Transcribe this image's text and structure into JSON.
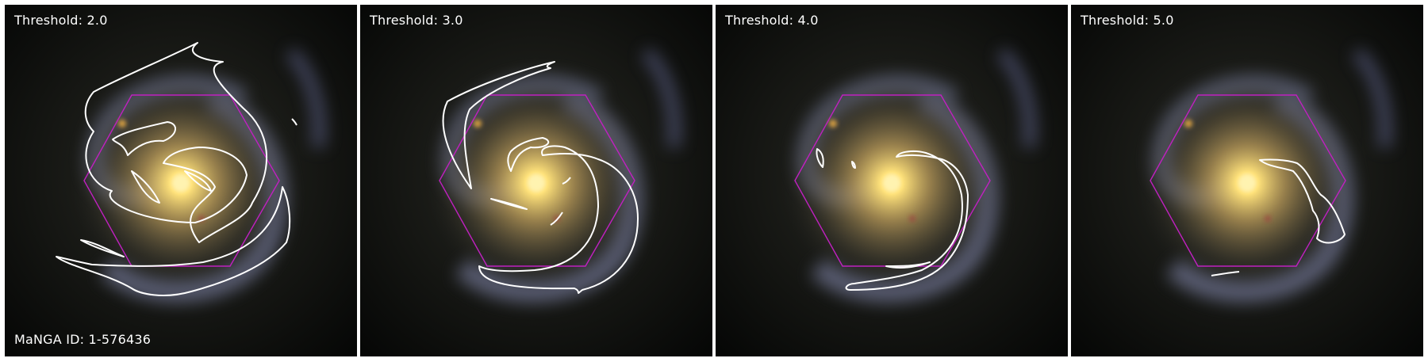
{
  "galaxy_id_label": "MaNGA ID: 1-576436",
  "panels": [
    {
      "threshold_label": "Threshold: 2.0"
    },
    {
      "threshold_label": "Threshold: 3.0"
    },
    {
      "threshold_label": "Threshold: 4.0"
    },
    {
      "threshold_label": "Threshold: 5.0"
    }
  ],
  "colors": {
    "hexagon": "#c020c0",
    "contour": "#ffffff",
    "core": "#ffe27a",
    "arms": "#8a90b8"
  }
}
